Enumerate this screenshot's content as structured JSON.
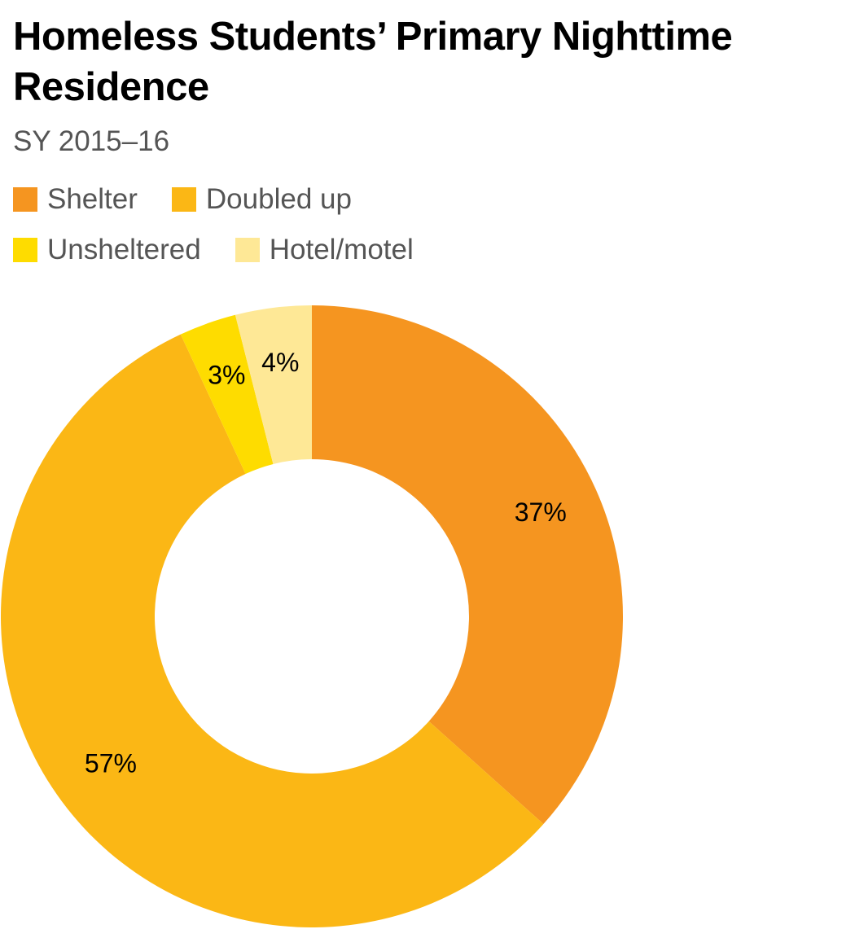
{
  "chart_data": {
    "type": "pie",
    "donut": true,
    "title": "Homeless Students’ Primary Nighttime Residence",
    "subtitle": "SY 2015–16",
    "legend_position": "top-left",
    "slices": [
      {
        "name": "Shelter",
        "value": 37,
        "label": "37%",
        "color": "#f59520"
      },
      {
        "name": "Doubled up",
        "value": 57,
        "label": "57%",
        "color": "#fbb715"
      },
      {
        "name": "Unsheltered",
        "value": 3,
        "label": "3%",
        "color": "#fedc00"
      },
      {
        "name": "Hotel/motel",
        "value": 4,
        "label": "4%",
        "color": "#fee896"
      }
    ]
  }
}
